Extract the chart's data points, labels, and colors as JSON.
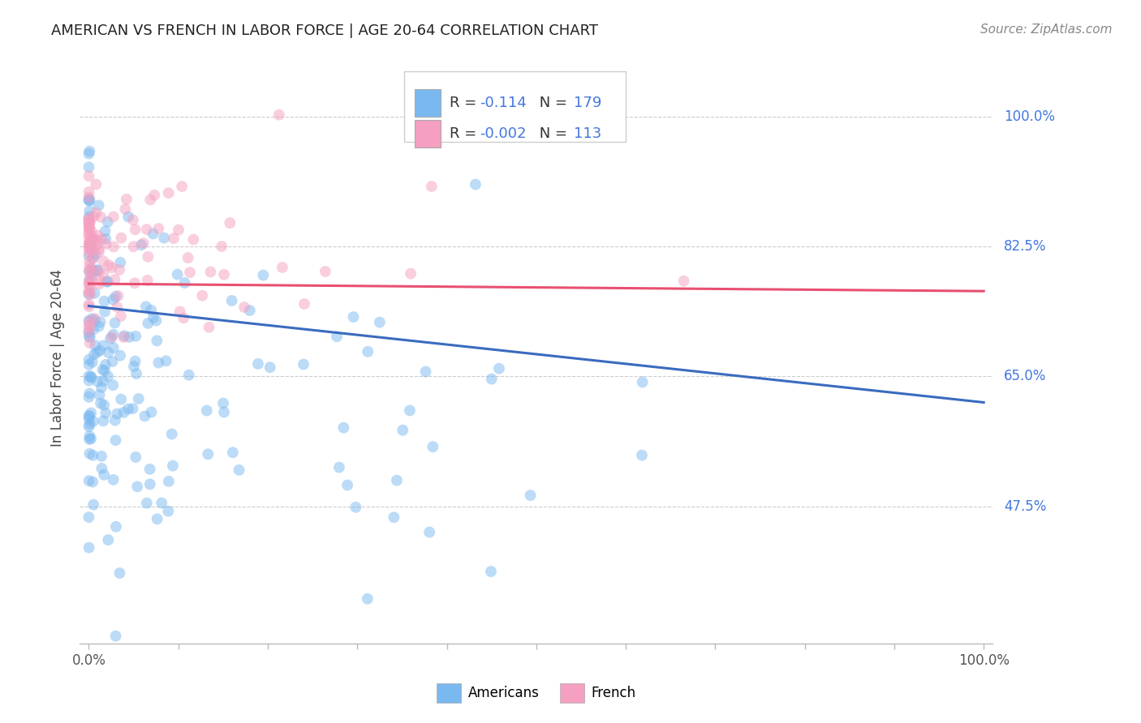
{
  "title": "AMERICAN VS FRENCH IN LABOR FORCE | AGE 20-64 CORRELATION CHART",
  "source": "Source: ZipAtlas.com",
  "ylabel": "In Labor Force | Age 20-64",
  "ytick_labels": [
    "100.0%",
    "82.5%",
    "65.0%",
    "47.5%"
  ],
  "ytick_values": [
    1.0,
    0.825,
    0.65,
    0.475
  ],
  "xlim": [
    -0.01,
    1.01
  ],
  "ylim": [
    0.29,
    1.06
  ],
  "americans_color": "#7ab8f0",
  "french_color": "#f5a0c0",
  "americans_line_color": "#3a6bbf",
  "french_line_color": "#e85070",
  "dot_size": 100,
  "dot_alpha": 0.5,
  "americans_R": -0.114,
  "americans_N": 179,
  "french_R": -0.002,
  "french_N": 113,
  "am_line_y0": 0.745,
  "am_line_y1": 0.615,
  "fr_line_y0": 0.775,
  "fr_line_y1": 0.765,
  "background_color": "#ffffff",
  "grid_color": "#cccccc",
  "title_color": "#222222",
  "right_label_color": "#4477dd",
  "legend_r_color": "#4477dd",
  "legend_n_color": "#4477dd",
  "legend_text_color": "#333333"
}
